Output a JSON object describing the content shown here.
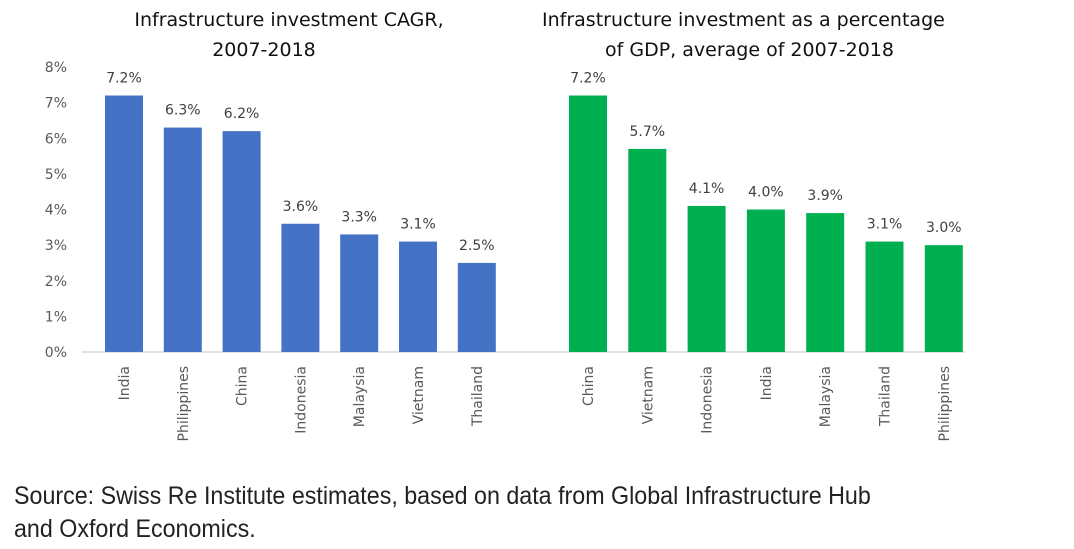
{
  "chart_data": [
    {
      "type": "bar",
      "title": "Infrastructure investment CAGR, 2007-2018",
      "title_lines": [
        "Infrastructure investment CAGR,",
        "2007-2018"
      ],
      "categories": [
        "India",
        "Philippines",
        "China",
        "Indonesia",
        "Malaysia",
        "Vietnam",
        "Thailand"
      ],
      "values": [
        7.2,
        6.3,
        6.2,
        3.6,
        3.3,
        3.1,
        2.5
      ],
      "data_labels": [
        "7.2%",
        "6.3%",
        "6.2%",
        "3.6%",
        "3.3%",
        "3.1%",
        "2.5%"
      ],
      "color": "#4472C4",
      "xlabel": "",
      "ylabel": "",
      "ylim": [
        0,
        8
      ],
      "yticks": [
        0,
        1,
        2,
        3,
        4,
        5,
        6,
        7,
        8
      ],
      "ytick_labels": [
        "0%",
        "1%",
        "2%",
        "3%",
        "4%",
        "5%",
        "6%",
        "7%",
        "8%"
      ],
      "grid": false,
      "legend": "none"
    },
    {
      "type": "bar",
      "title": "Infrastructure investment as a percentage of GDP, average of 2007-2018",
      "title_lines": [
        "Infrastructure investment as a percentage",
        "of GDP, average of 2007-2018"
      ],
      "categories": [
        "China",
        "Vietnam",
        "Indonesia",
        "India",
        "Malaysia",
        "Thailand",
        "Philippines"
      ],
      "values": [
        7.2,
        5.7,
        4.1,
        4.0,
        3.9,
        3.1,
        3.0
      ],
      "data_labels": [
        "7.2%",
        "5.7%",
        "4.1%",
        "4.0%",
        "3.9%",
        "3.1%",
        "3.0%"
      ],
      "color": "#00B050",
      "xlabel": "",
      "ylabel": "",
      "ylim": [
        0,
        8
      ],
      "grid": false,
      "legend": "none"
    }
  ],
  "source_lines": [
    "Source: Swiss Re Institute estimates, based on data from Global Infrastructure Hub",
    "and Oxford Economics."
  ]
}
